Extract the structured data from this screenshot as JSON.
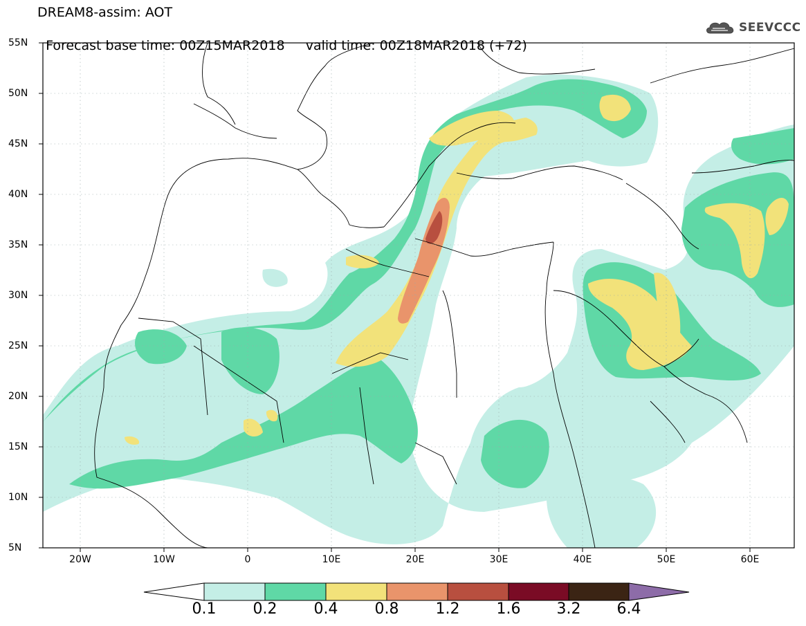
{
  "title": {
    "line1": "DREAM8-assim: AOT",
    "line2_base": "Forecast base time: 00Z15MAR2018",
    "line2_valid": "valid time: 00Z18MAR2018 (+72)"
  },
  "logo": {
    "text": "SEEVCCC",
    "icon": "cloud-icon"
  },
  "map": {
    "lat_labels": [
      "55N",
      "50N",
      "45N",
      "40N",
      "35N",
      "30N",
      "25N",
      "20N",
      "15N",
      "10N",
      "5N"
    ],
    "lon_labels": [
      "20W",
      "10W",
      "0",
      "10E",
      "20E",
      "30E",
      "40E",
      "50E",
      "60E"
    ],
    "variable": "AOT",
    "region_extent": {
      "lon_min": -25,
      "lon_max": 65,
      "lat_min": 5,
      "lat_max": 55
    }
  },
  "colorbar": {
    "labels": [
      "0.1",
      "0.2",
      "0.4",
      "0.8",
      "1.2",
      "1.6",
      "3.2",
      "6.4"
    ],
    "colors": {
      "c0": "#ffffff",
      "c1": "#c4eee6",
      "c2": "#5fd8a6",
      "c3": "#f2e27a",
      "c4": "#e9946b",
      "c5": "#b84f3f",
      "c6": "#7a0b25",
      "c7": "#3b2414",
      "c8": "#8d6ca8"
    }
  }
}
